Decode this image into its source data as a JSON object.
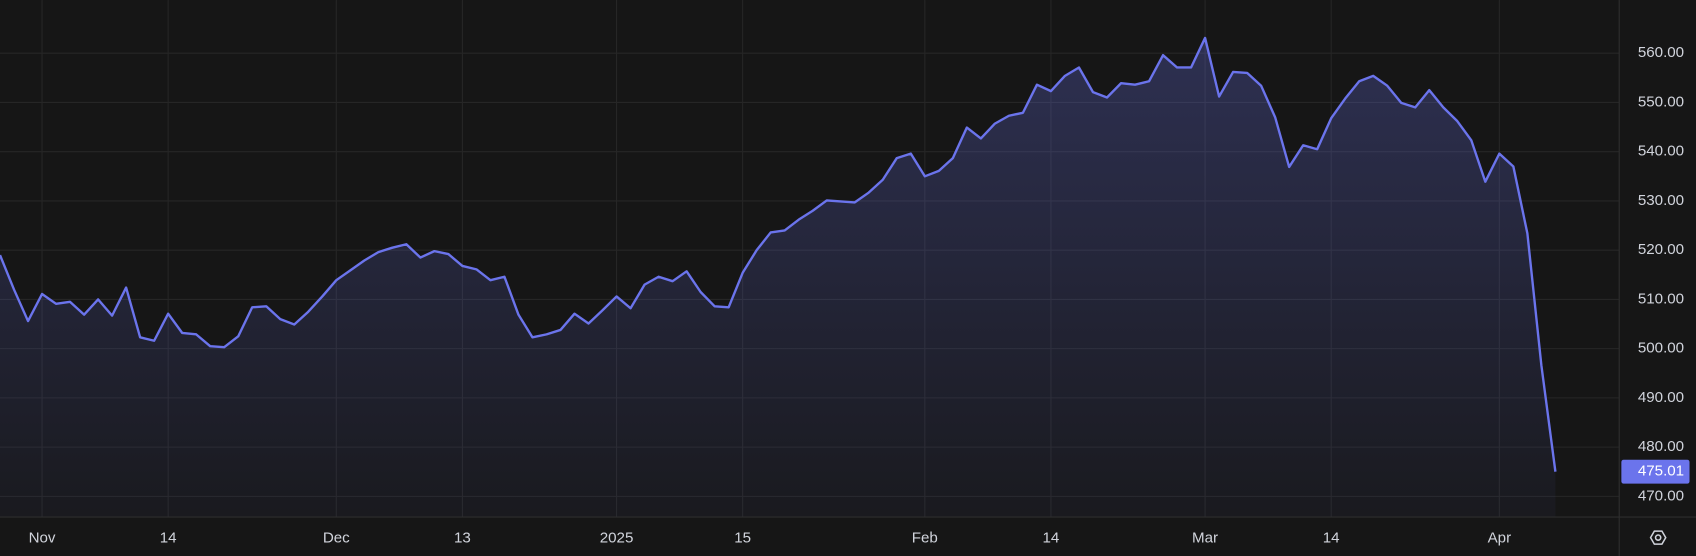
{
  "chart_data": {
    "type": "line",
    "categories": [
      null,
      null,
      null,
      "Nov",
      null,
      null,
      null,
      null,
      null,
      null,
      null,
      null,
      "14",
      null,
      null,
      null,
      null,
      null,
      null,
      null,
      null,
      null,
      null,
      null,
      "Dec",
      null,
      null,
      null,
      null,
      null,
      null,
      null,
      null,
      "13",
      null,
      null,
      null,
      null,
      null,
      null,
      null,
      null,
      null,
      null,
      "2025",
      null,
      null,
      null,
      null,
      null,
      null,
      null,
      null,
      "15",
      null,
      null,
      null,
      null,
      null,
      null,
      null,
      null,
      null,
      null,
      null,
      null,
      "Feb",
      null,
      null,
      null,
      null,
      null,
      null,
      null,
      null,
      "14",
      null,
      null,
      null,
      null,
      null,
      null,
      null,
      null,
      null,
      null,
      "Mar",
      null,
      null,
      null,
      null,
      null,
      null,
      null,
      null,
      "14",
      null,
      null,
      null,
      null,
      null,
      null,
      null,
      null,
      null,
      null,
      null,
      "Apr",
      null,
      null,
      null,
      null
    ],
    "values": [
      519.0,
      512.0,
      505.6,
      511.1,
      509.1,
      509.5,
      506.9,
      510.0,
      506.7,
      512.4,
      502.3,
      501.6,
      507.1,
      503.2,
      502.9,
      500.5,
      500.3,
      502.5,
      508.4,
      508.6,
      506.0,
      504.9,
      507.5,
      510.6,
      513.9,
      515.9,
      517.9,
      519.6,
      520.5,
      521.2,
      518.5,
      519.8,
      519.2,
      516.8,
      516.1,
      513.9,
      514.6,
      506.9,
      502.3,
      502.9,
      503.8,
      507.1,
      505.1,
      507.8,
      510.6,
      508.2,
      513.0,
      514.6,
      513.7,
      515.7,
      511.5,
      508.6,
      508.4,
      515.4,
      520.0,
      523.6,
      524.0,
      526.2,
      528.0,
      530.1,
      529.9,
      529.7,
      531.7,
      534.3,
      538.7,
      539.6,
      535.0,
      536.1,
      538.7,
      544.9,
      542.7,
      545.7,
      547.3,
      547.9,
      553.6,
      552.3,
      555.4,
      557.1,
      552.1,
      551.0,
      553.9,
      553.6,
      554.3,
      559.6,
      557.1,
      557.1,
      563.1,
      551.2,
      556.2,
      556.0,
      553.4,
      547.0,
      536.9,
      541.3,
      540.5,
      546.8,
      550.8,
      554.3,
      555.4,
      553.4,
      549.9,
      549.0,
      552.5,
      549.0,
      546.2,
      542.3,
      533.9,
      539.6,
      537.0,
      523.4,
      496.6,
      475.01
    ],
    "color": "#6b74ec",
    "ylim": [
      465.8,
      570.8
    ],
    "yticks": [
      {
        "value": 470,
        "label": "470.00"
      },
      {
        "value": 480,
        "label": "480.00"
      },
      {
        "value": 490,
        "label": "490.00"
      },
      {
        "value": 500,
        "label": "500.00"
      },
      {
        "value": 510,
        "label": "510.00"
      },
      {
        "value": 520,
        "label": "520.00"
      },
      {
        "value": 530,
        "label": "530.00"
      },
      {
        "value": 540,
        "label": "540.00"
      },
      {
        "value": 550,
        "label": "550.00"
      },
      {
        "value": 560,
        "label": "560.00"
      }
    ],
    "grid": true
  }
}
